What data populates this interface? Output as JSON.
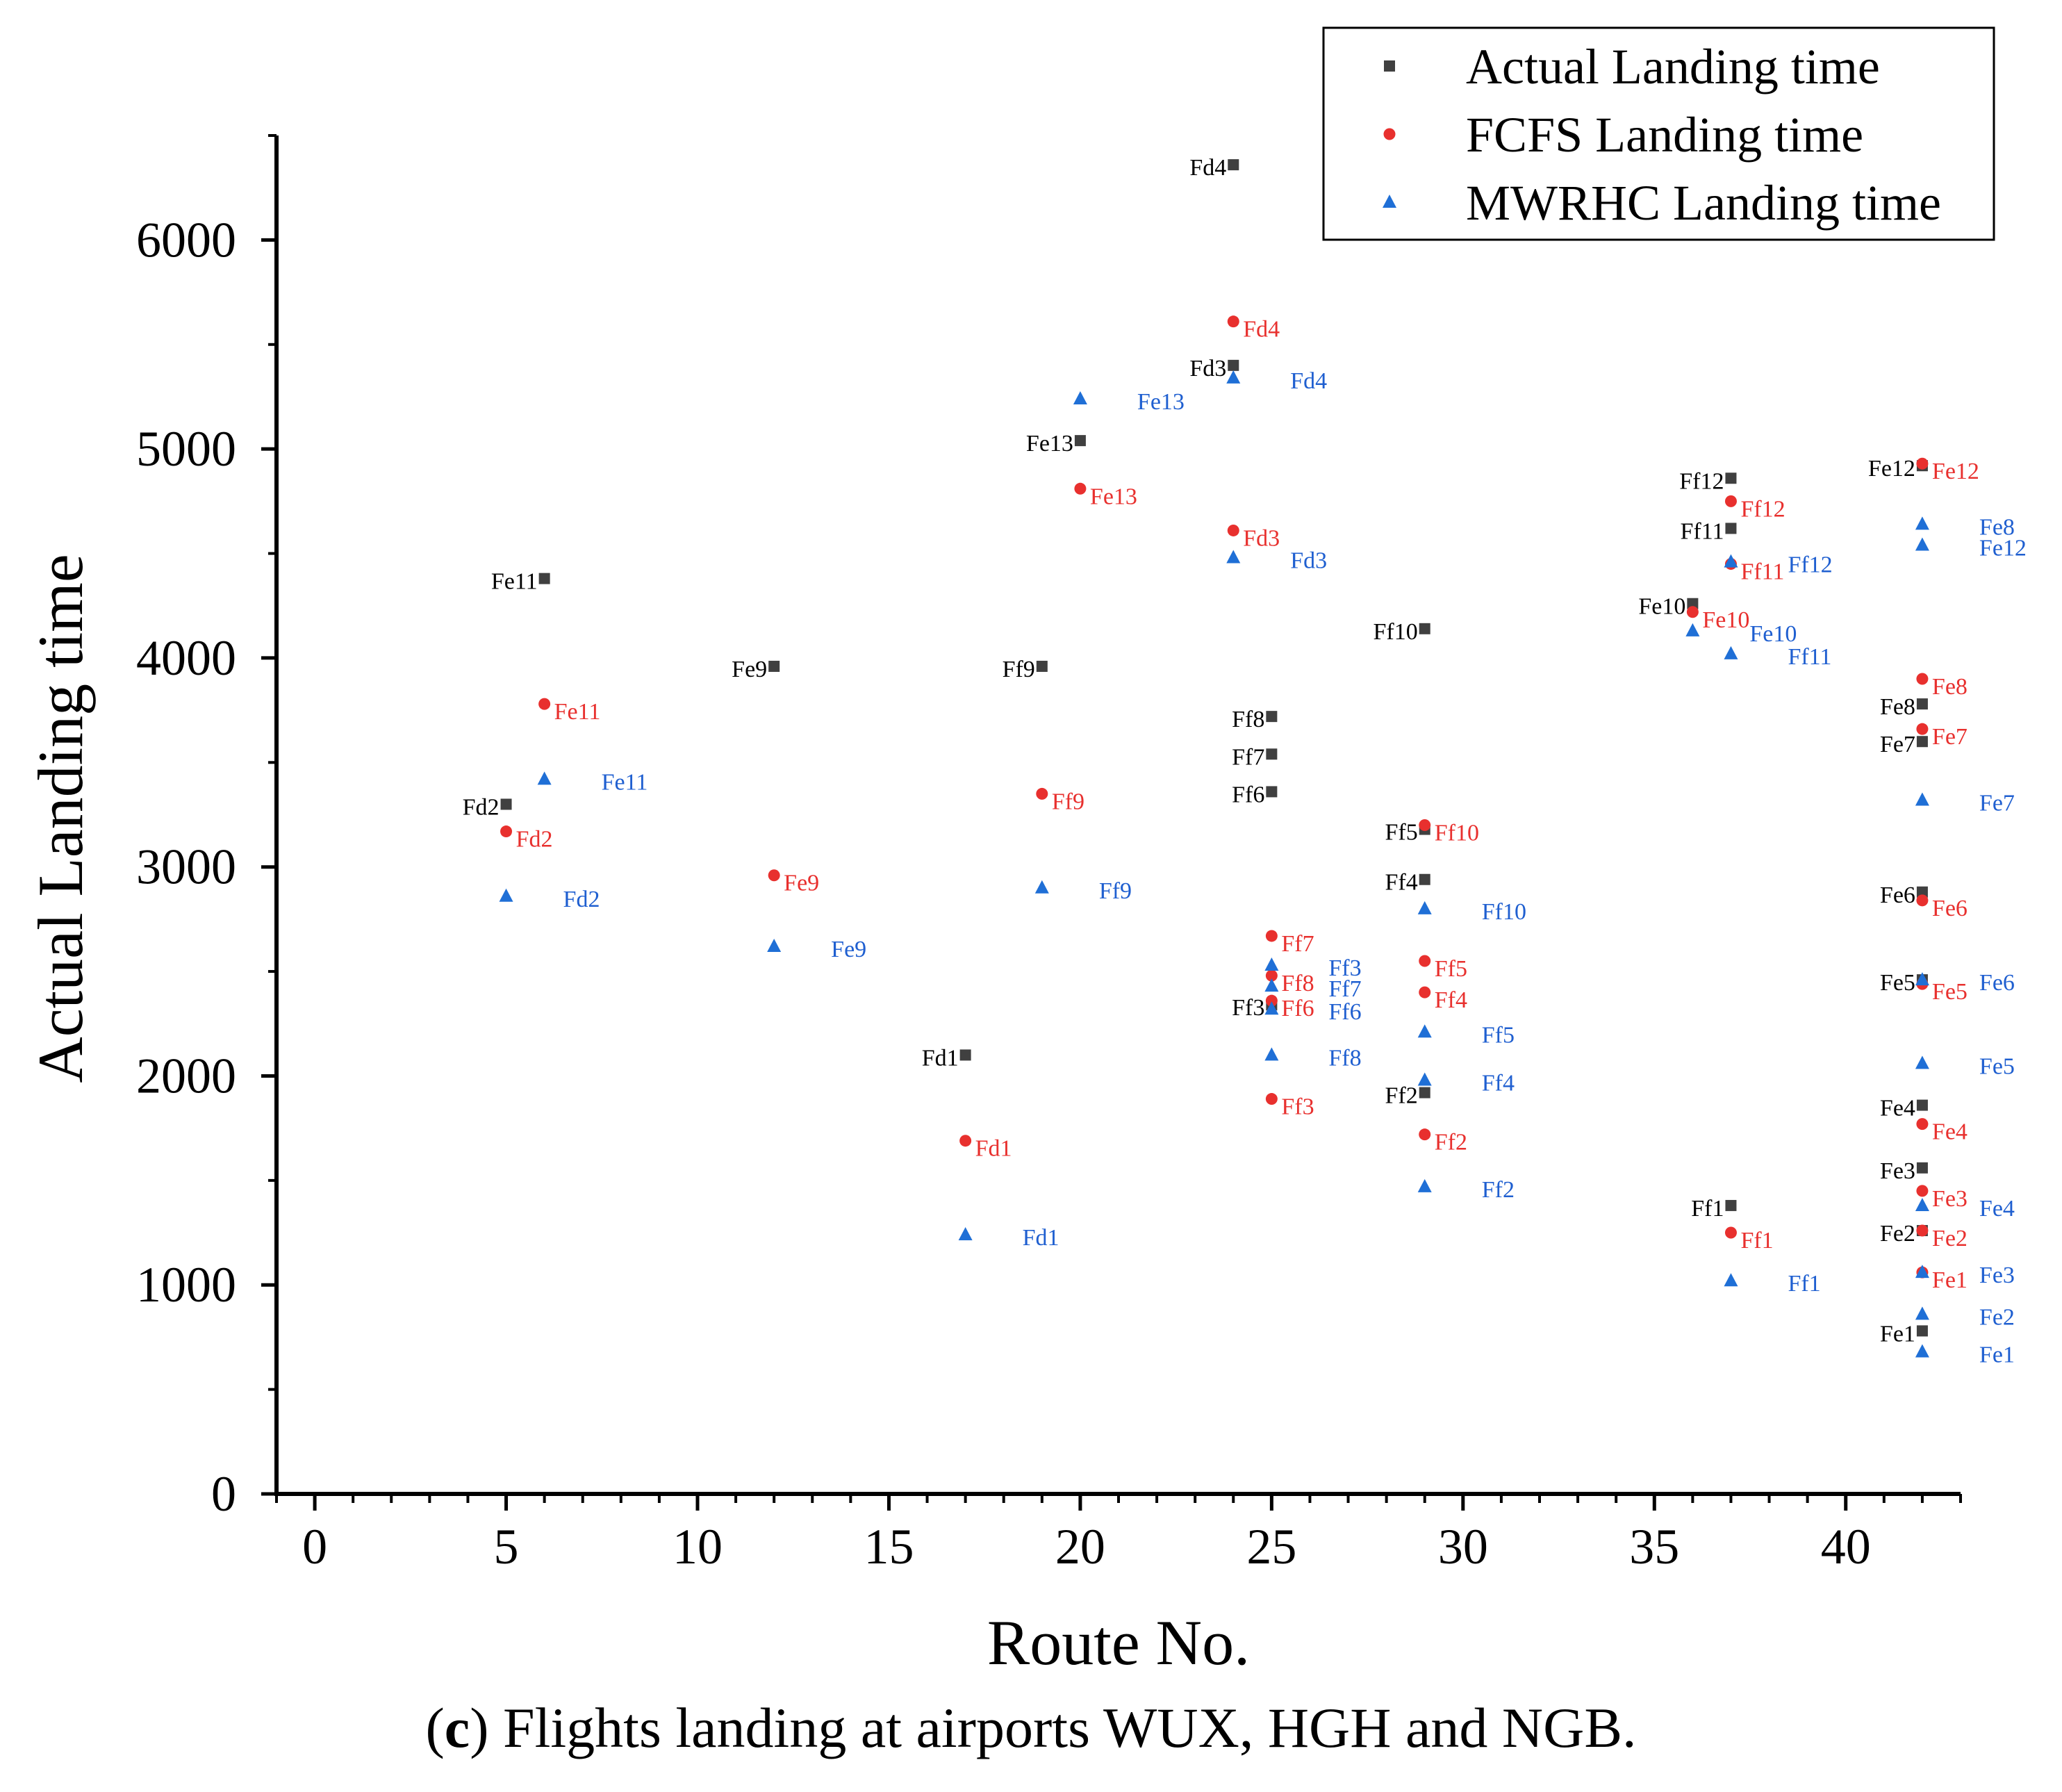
{
  "chart_data": {
    "type": "scatter",
    "xlabel": "Route No.",
    "ylabel": "Actual Landing time",
    "xlim": [
      -1,
      43
    ],
    "ylim": [
      0,
      6500
    ],
    "xticks": [
      "0",
      "5",
      "10",
      "15",
      "20",
      "25",
      "30",
      "35",
      "40"
    ],
    "xtick_values": [
      0,
      5,
      10,
      15,
      20,
      25,
      30,
      35,
      40
    ],
    "yticks": [
      "0",
      "1000",
      "2000",
      "3000",
      "4000",
      "5000",
      "6000"
    ],
    "ytick_values": [
      0,
      1000,
      2000,
      3000,
      4000,
      5000,
      6000
    ],
    "legend_position": "top-right",
    "series": [
      {
        "name": "Actual Landing time",
        "marker": "square",
        "color": "#404040",
        "label_color": "#000000",
        "label_side": "left",
        "points": [
          {
            "x": 6,
            "y": 4380,
            "label": "Fe11"
          },
          {
            "x": 5,
            "y": 3300,
            "label": "Fd2"
          },
          {
            "x": 12,
            "y": 3960,
            "label": "Fe9"
          },
          {
            "x": 17,
            "y": 2100,
            "label": "Fd1"
          },
          {
            "x": 19,
            "y": 3960,
            "label": "Ff9"
          },
          {
            "x": 20,
            "y": 5040,
            "label": "Fe13"
          },
          {
            "x": 24,
            "y": 6360,
            "label": "Fd4"
          },
          {
            "x": 24,
            "y": 5400,
            "label": "Fd3"
          },
          {
            "x": 25,
            "y": 3720,
            "label": "Ff8"
          },
          {
            "x": 25,
            "y": 3540,
            "label": "Ff7"
          },
          {
            "x": 25,
            "y": 3360,
            "label": "Ff6"
          },
          {
            "x": 25,
            "y": 2340,
            "label": "Ff3"
          },
          {
            "x": 29,
            "y": 4140,
            "label": "Ff10"
          },
          {
            "x": 29,
            "y": 3180,
            "label": "Ff5"
          },
          {
            "x": 29,
            "y": 2940,
            "label": "Ff4"
          },
          {
            "x": 29,
            "y": 1920,
            "label": "Ff2"
          },
          {
            "x": 36,
            "y": 4260,
            "label": "Fe10"
          },
          {
            "x": 37,
            "y": 4860,
            "label": "Ff12"
          },
          {
            "x": 37,
            "y": 4620,
            "label": "Ff11"
          },
          {
            "x": 37,
            "y": 1380,
            "label": "Ff1"
          },
          {
            "x": 42,
            "y": 4920,
            "label": "Fe12"
          },
          {
            "x": 42,
            "y": 3780,
            "label": "Fe8"
          },
          {
            "x": 42,
            "y": 3600,
            "label": "Fe7"
          },
          {
            "x": 42,
            "y": 2880,
            "label": "Fe6"
          },
          {
            "x": 42,
            "y": 2460,
            "label": "Fe5"
          },
          {
            "x": 42,
            "y": 1860,
            "label": "Fe4"
          },
          {
            "x": 42,
            "y": 1560,
            "label": "Fe3"
          },
          {
            "x": 42,
            "y": 1260,
            "label": "Fe2"
          },
          {
            "x": 42,
            "y": 780,
            "label": "Fe1"
          }
        ]
      },
      {
        "name": "FCFS Landing time",
        "marker": "circle",
        "color": "#e8302e",
        "label_color": "#e8302e",
        "label_side": "right",
        "points": [
          {
            "x": 6,
            "y": 3780,
            "label": "Fe11"
          },
          {
            "x": 5,
            "y": 3170,
            "label": "Fd2"
          },
          {
            "x": 12,
            "y": 2960,
            "label": "Fe9"
          },
          {
            "x": 17,
            "y": 1690,
            "label": "Fd1"
          },
          {
            "x": 19,
            "y": 3350,
            "label": "Ff9"
          },
          {
            "x": 20,
            "y": 4810,
            "label": "Fe13"
          },
          {
            "x": 24,
            "y": 5610,
            "label": "Fd4"
          },
          {
            "x": 24,
            "y": 4610,
            "label": "Fd3"
          },
          {
            "x": 25,
            "y": 2670,
            "label": "Ff7"
          },
          {
            "x": 25,
            "y": 2480,
            "label": "Ff8"
          },
          {
            "x": 25,
            "y": 2360,
            "label": "Ff6"
          },
          {
            "x": 25,
            "y": 1890,
            "label": "Ff3"
          },
          {
            "x": 29,
            "y": 3200,
            "label": "Ff10"
          },
          {
            "x": 29,
            "y": 2550,
            "label": "Ff5"
          },
          {
            "x": 29,
            "y": 2400,
            "label": "Ff4"
          },
          {
            "x": 29,
            "y": 1720,
            "label": "Ff2"
          },
          {
            "x": 36,
            "y": 4220,
            "label": "Fe10"
          },
          {
            "x": 37,
            "y": 4750,
            "label": "Ff12"
          },
          {
            "x": 37,
            "y": 4450,
            "label": "Ff11"
          },
          {
            "x": 37,
            "y": 1250,
            "label": "Ff1"
          },
          {
            "x": 42,
            "y": 4930,
            "label": "Fe12"
          },
          {
            "x": 42,
            "y": 3900,
            "label": "Fe8"
          },
          {
            "x": 42,
            "y": 3660,
            "label": "Fe7"
          },
          {
            "x": 42,
            "y": 2840,
            "label": "Fe6"
          },
          {
            "x": 42,
            "y": 2440,
            "label": "Fe5"
          },
          {
            "x": 42,
            "y": 1770,
            "label": "Fe4"
          },
          {
            "x": 42,
            "y": 1450,
            "label": "Fe3"
          },
          {
            "x": 42,
            "y": 1260,
            "label": "Fe2"
          },
          {
            "x": 42,
            "y": 1060,
            "label": "Fe1"
          }
        ]
      },
      {
        "name": "MWRHC Landing time",
        "marker": "triangle",
        "color": "#1f6fd6",
        "label_color": "#1f5fd0",
        "label_side": "far-right",
        "points": [
          {
            "x": 6,
            "y": 3420,
            "label": "Fe11"
          },
          {
            "x": 5,
            "y": 2860,
            "label": "Fd2"
          },
          {
            "x": 12,
            "y": 2620,
            "label": "Fe9"
          },
          {
            "x": 17,
            "y": 1240,
            "label": "Fd1"
          },
          {
            "x": 19,
            "y": 2900,
            "label": "Ff9"
          },
          {
            "x": 20,
            "y": 5240,
            "label": "Fe13"
          },
          {
            "x": 24,
            "y": 5340,
            "label": "Fd4"
          },
          {
            "x": 24,
            "y": 4480,
            "label": "Fd3"
          },
          {
            "x": 25,
            "y": 2530,
            "label": "Ff3"
          },
          {
            "x": 25,
            "y": 2430,
            "label": "Ff7"
          },
          {
            "x": 25,
            "y": 2320,
            "label": "Ff6"
          },
          {
            "x": 25,
            "y": 2100,
            "label": "Ff8"
          },
          {
            "x": 29,
            "y": 2800,
            "label": "Ff10"
          },
          {
            "x": 29,
            "y": 2210,
            "label": "Ff5"
          },
          {
            "x": 29,
            "y": 1980,
            "label": "Ff4"
          },
          {
            "x": 29,
            "y": 1470,
            "label": "Ff2"
          },
          {
            "x": 36,
            "y": 4130,
            "label": "Fe10"
          },
          {
            "x": 37,
            "y": 4460,
            "label": "Ff12"
          },
          {
            "x": 37,
            "y": 4020,
            "label": "Ff11"
          },
          {
            "x": 37,
            "y": 1020,
            "label": "Ff1"
          },
          {
            "x": 42,
            "y": 4640,
            "label": "Fe8"
          },
          {
            "x": 42,
            "y": 4540,
            "label": "Fe12"
          },
          {
            "x": 42,
            "y": 3320,
            "label": "Fe7"
          },
          {
            "x": 42,
            "y": 2460,
            "label": "Fe6"
          },
          {
            "x": 42,
            "y": 2060,
            "label": "Fe5"
          },
          {
            "x": 42,
            "y": 1380,
            "label": "Fe4"
          },
          {
            "x": 42,
            "y": 1060,
            "label": "Fe3"
          },
          {
            "x": 42,
            "y": 860,
            "label": "Fe2"
          },
          {
            "x": 42,
            "y": 680,
            "label": "Fe1"
          }
        ]
      }
    ]
  },
  "caption": {
    "letter": "c",
    "open": "(",
    "close": ")",
    "text": " Flights landing at airports WUX, HGH and NGB."
  }
}
